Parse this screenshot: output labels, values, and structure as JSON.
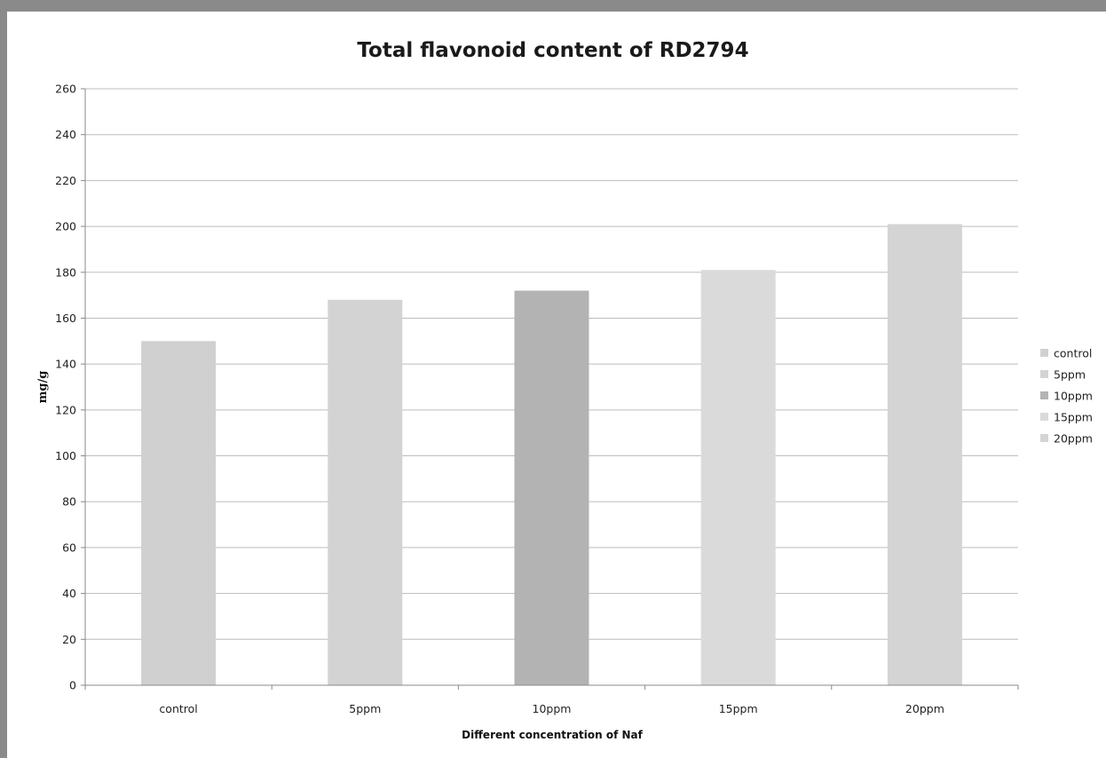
{
  "chart_data": {
    "type": "bar",
    "title": "Total flavonoid content of RD2794",
    "xlabel": "Different concentration  of Naf",
    "ylabel": "mg/g",
    "categories": [
      "control",
      "5ppm",
      "10ppm",
      "15ppm",
      "20ppm"
    ],
    "values": [
      150,
      168,
      172,
      181,
      201
    ],
    "ylim": [
      0,
      260
    ],
    "ytick_step": 20,
    "grid": true,
    "legend_position": "right",
    "legend": [
      "control",
      "5ppm",
      "10ppm",
      "15ppm",
      "20ppm"
    ],
    "colors": [
      "#d0d0d0",
      "#d3d3d3",
      "#b3b3b3",
      "#dadada",
      "#d4d4d4"
    ],
    "gridline_color": "#bdbdbd",
    "axis_color": "#888888"
  }
}
